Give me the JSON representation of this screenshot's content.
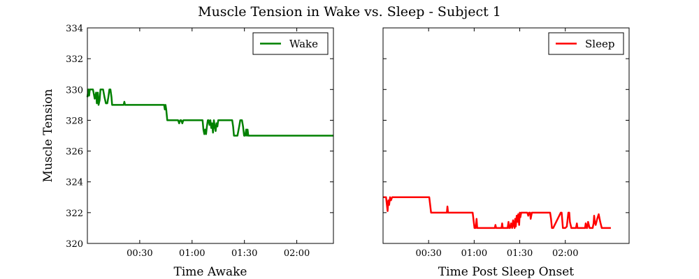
{
  "figure": {
    "title": "Muscle Tension in Wake vs. Sleep - Subject 1"
  },
  "colors": {
    "wake": "#008000",
    "sleep": "#ff0000"
  },
  "chart_data": [
    {
      "type": "line",
      "xlabel": "Time Awake",
      "ylabel": "Muscle Tension",
      "xlim_minutes": [
        0,
        141
      ],
      "ylim": [
        320,
        334
      ],
      "y_ticks": [
        "320",
        "322",
        "324",
        "326",
        "328",
        "330",
        "332",
        "334"
      ],
      "x_ticks": [
        {
          "minutes": 30,
          "label": "00:30"
        },
        {
          "minutes": 60,
          "label": "01:00"
        },
        {
          "minutes": 90,
          "label": "01:30"
        },
        {
          "minutes": 120,
          "label": "02:00"
        }
      ],
      "legend": {
        "position": "top-right"
      },
      "series": [
        {
          "name": "Wake",
          "color": "#008000",
          "x_minutes": [
            0,
            0.6,
            1.0,
            1.4,
            2.0,
            3.2,
            4.2,
            5.0,
            5.4,
            6.0,
            6.4,
            7.0,
            7.5,
            8.0,
            9.0,
            9.8,
            10.6,
            11.4,
            12.0,
            12.6,
            13.2,
            13.8,
            14.2,
            14.6,
            15.0,
            15.6,
            20.8,
            21.2,
            21.6,
            22.0,
            44.0,
            44.4,
            44.8,
            45.2,
            45.8,
            46.3,
            46.7,
            47.3,
            52.0,
            52.6,
            53.2,
            53.8,
            54.4,
            55.0,
            55.6,
            56.2,
            66.0,
            66.5,
            67.0,
            67.5,
            68.0,
            68.5,
            69.0,
            69.5,
            70.0,
            70.5,
            71.0,
            71.5,
            72.0,
            72.5,
            73.0,
            73.5,
            74.0,
            74.5,
            75.0,
            75.5,
            76.0,
            77.0,
            83.0,
            83.5,
            84.0,
            85.0,
            86.0,
            87.0,
            87.6,
            88.0,
            88.6,
            89.2,
            89.8,
            90.4,
            91.0,
            91.4,
            91.8,
            92.2,
            93.0,
            141.0
          ],
          "values": [
            329.5,
            330.0,
            329.6,
            330.0,
            330.0,
            330.0,
            329.4,
            329.8,
            329.1,
            329.8,
            329.0,
            329.3,
            330.0,
            330.0,
            330.0,
            329.5,
            329.1,
            329.1,
            329.5,
            330.0,
            330.0,
            329.5,
            329.0,
            329.0,
            329.0,
            329.0,
            329.0,
            329.2,
            329.0,
            329.0,
            329.0,
            328.7,
            329.0,
            328.7,
            328.0,
            328.0,
            328.0,
            328.0,
            328.0,
            327.8,
            328.0,
            328.0,
            327.8,
            328.0,
            328.0,
            328.0,
            328.0,
            327.4,
            327.1,
            327.4,
            327.1,
            327.6,
            328.0,
            328.0,
            327.7,
            328.0,
            327.5,
            327.8,
            327.2,
            328.0,
            327.6,
            327.3,
            327.8,
            327.6,
            328.0,
            328.0,
            328.0,
            328.0,
            328.0,
            327.6,
            327.0,
            327.0,
            327.0,
            327.6,
            328.0,
            328.0,
            328.0,
            327.6,
            327.0,
            327.0,
            327.4,
            327.0,
            327.4,
            327.0,
            327.0,
            327.0
          ]
        }
      ]
    },
    {
      "type": "line",
      "xlabel": "Time Post Sleep Onset",
      "ylabel": "",
      "xlim_minutes": [
        0,
        162
      ],
      "ylim": [
        320,
        334
      ],
      "x_ticks": [
        {
          "minutes": 30,
          "label": "00:30"
        },
        {
          "minutes": 60,
          "label": "01:00"
        },
        {
          "minutes": 90,
          "label": "01:30"
        },
        {
          "minutes": 120,
          "label": "02:00"
        }
      ],
      "legend": {
        "position": "top-right"
      },
      "series": [
        {
          "name": "Sleep",
          "color": "#ff0000",
          "x_minutes": [
            0,
            2.0,
            3.0,
            3.5,
            4.0,
            4.6,
            5.2,
            6.0,
            30.4,
            31.0,
            31.6,
            32.0,
            42.0,
            42.4,
            42.8,
            43.2,
            59.0,
            59.6,
            60.2,
            61.0,
            61.6,
            62.0,
            62.6,
            63.2,
            64.0,
            73.6,
            74.0,
            74.4,
            78.0,
            78.4,
            78.8,
            79.2,
            80.0,
            81.0,
            82.0,
            82.6,
            83.0,
            83.6,
            84.2,
            85.0,
            85.6,
            86.0,
            86.6,
            87.0,
            87.4,
            88.0,
            88.6,
            89.0,
            89.6,
            90.0,
            90.4,
            91.0,
            95.0,
            95.6,
            96.2,
            96.8,
            97.2,
            98.0,
            110.0,
            110.6,
            111.2,
            112.0,
            117.0,
            117.6,
            118.0,
            118.4,
            119.0,
            120.0,
            121.0,
            122.0,
            122.6,
            123.0,
            124.0,
            124.6,
            125.0,
            127.0,
            127.6,
            128.0,
            128.4,
            129.0,
            133.0,
            133.4,
            134.0,
            134.4,
            135.0,
            136.0,
            137.0,
            138.0,
            138.6,
            139.0,
            139.4,
            140.0,
            141.0,
            142.0,
            143.0,
            144.0,
            150.0
          ],
          "values": [
            323.0,
            323.0,
            322.1,
            322.8,
            322.5,
            323.0,
            322.8,
            323.0,
            323.0,
            322.5,
            322.0,
            322.0,
            322.0,
            322.4,
            322.0,
            322.0,
            322.0,
            321.5,
            321.0,
            321.0,
            321.6,
            321.0,
            321.0,
            321.0,
            321.0,
            321.0,
            321.2,
            321.0,
            321.0,
            321.3,
            321.0,
            321.0,
            321.0,
            321.0,
            321.0,
            321.4,
            321.0,
            321.0,
            321.3,
            321.0,
            321.5,
            321.2,
            321.0,
            321.6,
            321.1,
            321.8,
            321.4,
            321.9,
            321.2,
            322.0,
            321.7,
            322.0,
            322.0,
            321.8,
            322.0,
            322.0,
            321.6,
            322.0,
            322.0,
            321.6,
            321.0,
            321.0,
            322.0,
            322.0,
            321.5,
            321.0,
            321.0,
            321.0,
            321.1,
            322.0,
            322.0,
            321.4,
            321.0,
            321.0,
            321.0,
            321.0,
            321.3,
            321.0,
            321.0,
            321.0,
            321.0,
            321.3,
            321.0,
            321.0,
            321.4,
            321.0,
            321.0,
            321.0,
            321.3,
            321.8,
            321.4,
            321.2,
            321.6,
            321.9,
            321.4,
            321.0,
            321.0
          ]
        }
      ]
    }
  ]
}
